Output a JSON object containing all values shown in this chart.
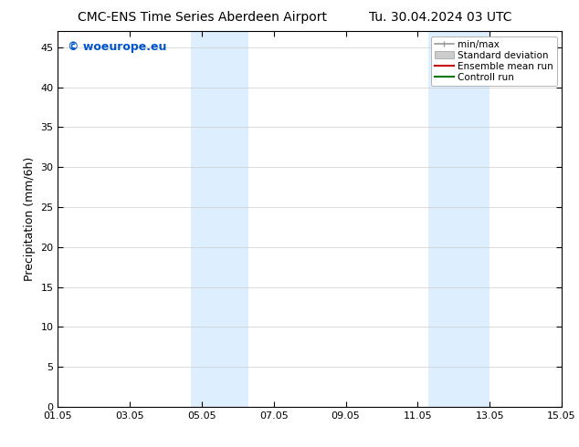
{
  "title_left": "CMC-ENS Time Series Aberdeen Airport",
  "title_right": "Tu. 30.04.2024 03 UTC",
  "ylabel": "Precipitation (mm/6h)",
  "watermark": "© woeurope.eu",
  "watermark_color": "#0055cc",
  "xlim": [
    0,
    14
  ],
  "ylim": [
    0,
    47
  ],
  "yticks": [
    0,
    5,
    10,
    15,
    20,
    25,
    30,
    35,
    40,
    45
  ],
  "xtick_labels": [
    "01.05",
    "03.05",
    "05.05",
    "07.05",
    "09.05",
    "11.05",
    "13.05",
    "15.05"
  ],
  "xtick_positions": [
    0,
    2,
    4,
    6,
    8,
    10,
    12,
    14
  ],
  "shaded_regions": [
    {
      "x_start": 3.7,
      "x_end": 5.3,
      "color": "#ddeeff",
      "alpha": 1.0
    },
    {
      "x_start": 10.3,
      "x_end": 12.0,
      "color": "#ddeeff",
      "alpha": 1.0
    }
  ],
  "background_color": "#ffffff",
  "grid_color": "#cccccc",
  "tick_fontsize": 8,
  "label_fontsize": 9,
  "title_fontsize": 10,
  "legend_fontsize": 7.5
}
